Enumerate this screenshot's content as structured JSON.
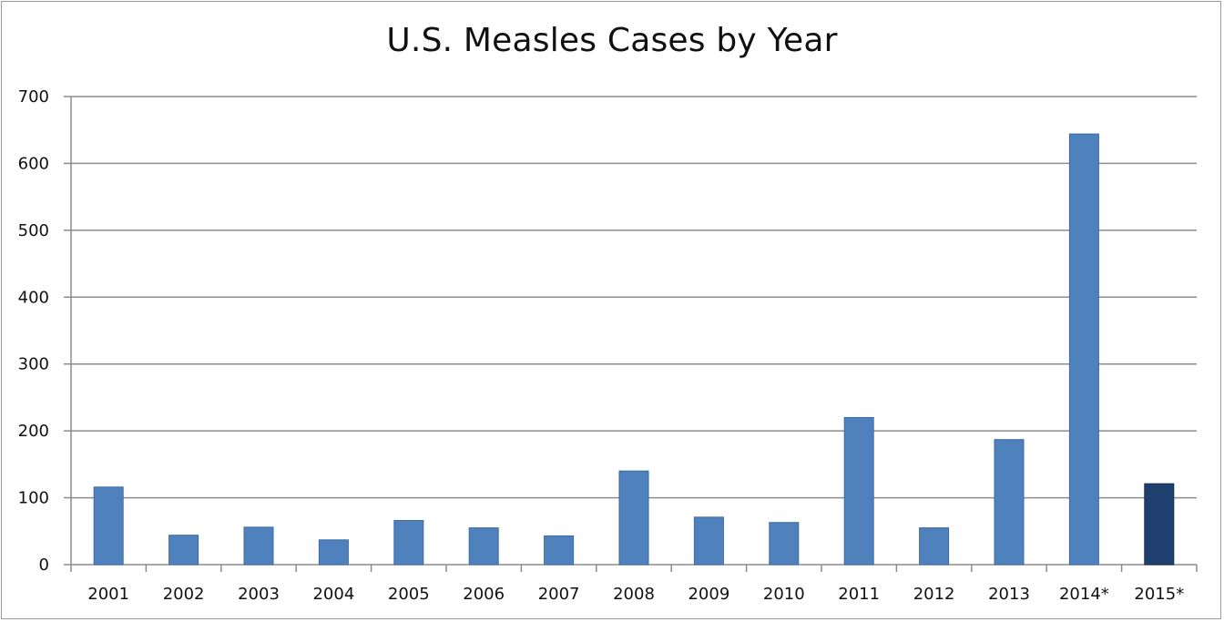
{
  "chart_data": {
    "type": "bar",
    "title": "U.S. Measles Cases by Year",
    "xlabel": "",
    "ylabel": "",
    "categories": [
      "2001",
      "2002",
      "2003",
      "2004",
      "2005",
      "2006",
      "2007",
      "2008",
      "2009",
      "2010",
      "2011",
      "2012",
      "2013",
      "2014*",
      "2015*"
    ],
    "series": [
      {
        "values": [
          116,
          44,
          56,
          37,
          66,
          55,
          43,
          140,
          71,
          63,
          220,
          55,
          187,
          644,
          121
        ]
      }
    ],
    "bar_colors": [
      "#4f81bd",
      "#4f81bd",
      "#4f81bd",
      "#4f81bd",
      "#4f81bd",
      "#4f81bd",
      "#4f81bd",
      "#4f81bd",
      "#4f81bd",
      "#4f81bd",
      "#4f81bd",
      "#4f81bd",
      "#4f81bd",
      "#4f81bd",
      "#1f3f6e"
    ],
    "ylim": [
      0,
      700
    ],
    "yticks": [
      0,
      100,
      200,
      300,
      400,
      500,
      600,
      700
    ],
    "grid": true,
    "legend": "none"
  }
}
